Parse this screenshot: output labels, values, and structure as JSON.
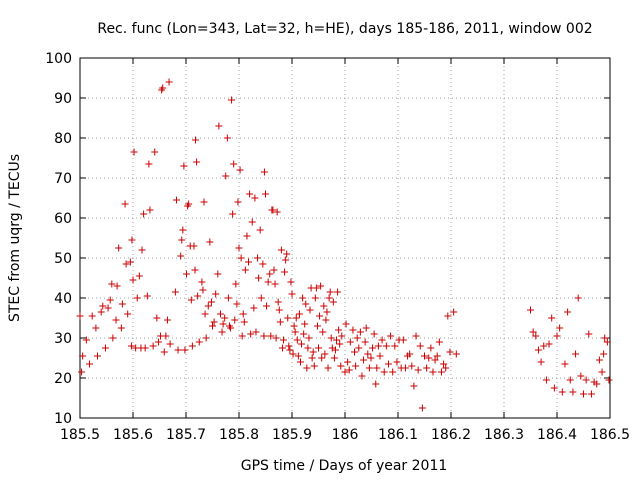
{
  "chart_data": {
    "type": "scatter",
    "title": "Rec. func (Lon=343, Lat=32, h=HE), days 185-186, 2011, window 002",
    "xlabel": "GPS time / Days of year 2011",
    "ylabel": "STEC from uqrg / TECUs",
    "xlim": [
      185.5,
      186.5
    ],
    "ylim": [
      10,
      100
    ],
    "xticks": [
      "185.5",
      "185.6",
      "185.7",
      "185.8",
      "185.9",
      "186",
      "186.1",
      "186.2",
      "186.3",
      "186.4",
      "186.5"
    ],
    "xtick_values": [
      185.5,
      185.6,
      185.7,
      185.8,
      185.9,
      186.0,
      186.1,
      186.2,
      186.3,
      186.4,
      186.5
    ],
    "yticks": [
      "10",
      "20",
      "30",
      "40",
      "50",
      "60",
      "70",
      "80",
      "90",
      "100"
    ],
    "ytick_values": [
      10,
      20,
      30,
      40,
      50,
      60,
      70,
      80,
      90,
      100
    ],
    "grid": true,
    "marker": "+",
    "marker_color": "#cc0000",
    "points": [
      [
        185.5,
        35.5
      ],
      [
        185.503,
        21.5
      ],
      [
        185.505,
        25.5
      ],
      [
        185.512,
        29.5
      ],
      [
        185.518,
        23.5
      ],
      [
        185.523,
        35.5
      ],
      [
        185.53,
        32.5
      ],
      [
        185.533,
        25.5
      ],
      [
        185.54,
        36.5
      ],
      [
        185.543,
        38.0
      ],
      [
        185.548,
        27.5
      ],
      [
        185.553,
        37.5
      ],
      [
        185.557,
        39.5
      ],
      [
        185.56,
        43.5
      ],
      [
        185.562,
        30.0
      ],
      [
        185.568,
        34.5
      ],
      [
        185.57,
        43.0
      ],
      [
        185.573,
        52.5
      ],
      [
        185.578,
        32.5
      ],
      [
        185.58,
        38.5
      ],
      [
        185.585,
        63.5
      ],
      [
        185.587,
        48.5
      ],
      [
        185.59,
        36.0
      ],
      [
        185.595,
        49.0
      ],
      [
        185.597,
        28.0
      ],
      [
        185.598,
        54.5
      ],
      [
        185.6,
        44.5
      ],
      [
        185.602,
        76.5
      ],
      [
        185.605,
        27.5
      ],
      [
        185.608,
        40.0
      ],
      [
        185.612,
        45.5
      ],
      [
        185.615,
        27.5
      ],
      [
        185.617,
        52.0
      ],
      [
        185.62,
        61.0
      ],
      [
        185.623,
        27.5
      ],
      [
        185.627,
        40.5
      ],
      [
        185.63,
        73.5
      ],
      [
        185.632,
        62.0
      ],
      [
        185.638,
        28.0
      ],
      [
        185.641,
        76.5
      ],
      [
        185.645,
        35.0
      ],
      [
        185.648,
        29.0
      ],
      [
        185.652,
        30.5
      ],
      [
        185.654,
        92.0
      ],
      [
        185.656,
        92.5
      ],
      [
        185.659,
        26.5
      ],
      [
        185.662,
        30.5
      ],
      [
        185.665,
        34.5
      ],
      [
        185.668,
        94.0
      ],
      [
        185.67,
        28.5
      ],
      [
        185.68,
        41.5
      ],
      [
        185.682,
        64.5
      ],
      [
        185.685,
        27.0
      ],
      [
        185.69,
        50.5
      ],
      [
        185.692,
        54.5
      ],
      [
        185.694,
        57.0
      ],
      [
        185.696,
        73.0
      ],
      [
        185.698,
        27.0
      ],
      [
        185.701,
        46.0
      ],
      [
        185.703,
        63.0
      ],
      [
        185.705,
        63.5
      ],
      [
        185.708,
        53.0
      ],
      [
        185.71,
        39.5
      ],
      [
        185.712,
        28.0
      ],
      [
        185.715,
        53.0
      ],
      [
        185.717,
        47.0
      ],
      [
        185.718,
        79.5
      ],
      [
        185.72,
        74.0
      ],
      [
        185.722,
        40.5
      ],
      [
        185.725,
        29.0
      ],
      [
        185.73,
        44.0
      ],
      [
        185.732,
        42.0
      ],
      [
        185.734,
        64.0
      ],
      [
        185.736,
        36.0
      ],
      [
        185.738,
        30.0
      ],
      [
        185.742,
        38.0
      ],
      [
        185.745,
        54.0
      ],
      [
        185.748,
        39.0
      ],
      [
        185.75,
        33.0
      ],
      [
        185.753,
        34.0
      ],
      [
        185.756,
        41.0
      ],
      [
        185.76,
        46.0
      ],
      [
        185.762,
        83.0
      ],
      [
        185.765,
        36.0
      ],
      [
        185.768,
        31.5
      ],
      [
        185.77,
        33.5
      ],
      [
        185.773,
        35.0
      ],
      [
        185.775,
        70.5
      ],
      [
        185.778,
        80.0
      ],
      [
        185.78,
        40.0
      ],
      [
        185.782,
        33.0
      ],
      [
        185.784,
        32.5
      ],
      [
        185.786,
        89.5
      ],
      [
        185.788,
        61.0
      ],
      [
        185.79,
        73.5
      ],
      [
        185.792,
        34.5
      ],
      [
        185.794,
        43.5
      ],
      [
        185.796,
        38.5
      ],
      [
        185.798,
        64.0
      ],
      [
        185.8,
        52.5
      ],
      [
        185.802,
        72.0
      ],
      [
        185.804,
        50.0
      ],
      [
        185.806,
        30.5
      ],
      [
        185.808,
        36.0
      ],
      [
        185.81,
        34.0
      ],
      [
        185.812,
        47.0
      ],
      [
        185.815,
        55.5
      ],
      [
        185.818,
        49.0
      ],
      [
        185.82,
        66.0
      ],
      [
        185.822,
        31.0
      ],
      [
        185.825,
        59.0
      ],
      [
        185.828,
        37.5
      ],
      [
        185.83,
        65.0
      ],
      [
        185.832,
        31.5
      ],
      [
        185.835,
        50.0
      ],
      [
        185.837,
        45.0
      ],
      [
        185.84,
        57.0
      ],
      [
        185.842,
        40.0
      ],
      [
        185.845,
        48.5
      ],
      [
        185.847,
        30.5
      ],
      [
        185.848,
        71.5
      ],
      [
        185.85,
        66.0
      ],
      [
        185.852,
        38.0
      ],
      [
        185.855,
        44.0
      ],
      [
        185.858,
        46.0
      ],
      [
        185.86,
        30.5
      ],
      [
        185.862,
        62.0
      ],
      [
        185.864,
        62.0
      ],
      [
        185.866,
        47.0
      ],
      [
        185.868,
        43.5
      ],
      [
        185.87,
        30.0
      ],
      [
        185.872,
        61.5
      ],
      [
        185.874,
        39.0
      ],
      [
        185.876,
        37.0
      ],
      [
        185.878,
        34.0
      ],
      [
        185.88,
        52.0
      ],
      [
        185.882,
        27.5
      ],
      [
        185.884,
        29.5
      ],
      [
        185.886,
        46.5
      ],
      [
        185.888,
        49.5
      ],
      [
        185.89,
        51.0
      ],
      [
        185.892,
        35.0
      ],
      [
        185.894,
        28.0
      ],
      [
        185.896,
        27.0
      ],
      [
        185.898,
        44.0
      ],
      [
        185.9,
        41.0
      ],
      [
        185.902,
        26.0
      ],
      [
        185.904,
        33.0
      ],
      [
        185.906,
        31.5
      ],
      [
        185.908,
        35.0
      ],
      [
        185.91,
        29.5
      ],
      [
        185.912,
        25.5
      ],
      [
        185.914,
        36.0
      ],
      [
        185.916,
        24.0
      ],
      [
        185.918,
        28.5
      ],
      [
        185.92,
        40.0
      ],
      [
        185.922,
        31.0
      ],
      [
        185.924,
        33.5
      ],
      [
        185.926,
        38.5
      ],
      [
        185.928,
        22.5
      ],
      [
        185.93,
        27.5
      ],
      [
        185.932,
        30.0
      ],
      [
        185.934,
        37.0
      ],
      [
        185.936,
        42.5
      ],
      [
        185.938,
        25.0
      ],
      [
        185.94,
        26.5
      ],
      [
        185.942,
        23.0
      ],
      [
        185.944,
        40.0
      ],
      [
        185.946,
        42.5
      ],
      [
        185.948,
        33.0
      ],
      [
        185.95,
        27.5
      ],
      [
        185.952,
        35.5
      ],
      [
        185.954,
        43.0
      ],
      [
        185.956,
        25.0
      ],
      [
        185.958,
        31.5
      ],
      [
        185.96,
        38.0
      ],
      [
        185.962,
        26.0
      ],
      [
        185.964,
        34.5
      ],
      [
        185.966,
        36.5
      ],
      [
        185.968,
        22.5
      ],
      [
        185.97,
        40.0
      ],
      [
        185.972,
        41.5
      ],
      [
        185.974,
        30.0
      ],
      [
        185.976,
        27.5
      ],
      [
        185.978,
        39.0
      ],
      [
        185.98,
        25.0
      ],
      [
        185.982,
        27.0
      ],
      [
        185.984,
        29.5
      ],
      [
        185.986,
        41.5
      ],
      [
        185.988,
        32.0
      ],
      [
        185.99,
        28.5
      ],
      [
        185.992,
        23.0
      ],
      [
        185.994,
        30.5
      ],
      [
        186.0,
        21.5
      ],
      [
        186.002,
        33.5
      ],
      [
        186.005,
        24.0
      ],
      [
        186.008,
        22.0
      ],
      [
        186.01,
        29.0
      ],
      [
        186.015,
        32.0
      ],
      [
        186.018,
        26.5
      ],
      [
        186.02,
        23.0
      ],
      [
        186.023,
        30.0
      ],
      [
        186.026,
        27.5
      ],
      [
        186.029,
        31.5
      ],
      [
        186.032,
        20.5
      ],
      [
        186.035,
        24.5
      ],
      [
        186.038,
        29.0
      ],
      [
        186.04,
        32.5
      ],
      [
        186.043,
        26.0
      ],
      [
        186.046,
        22.5
      ],
      [
        186.049,
        25.0
      ],
      [
        186.052,
        27.5
      ],
      [
        186.055,
        31.0
      ],
      [
        186.058,
        18.5
      ],
      [
        186.06,
        22.5
      ],
      [
        186.063,
        28.0
      ],
      [
        186.066,
        25.5
      ],
      [
        186.07,
        29.5
      ],
      [
        186.074,
        21.5
      ],
      [
        186.078,
        28.0
      ],
      [
        186.082,
        23.5
      ],
      [
        186.086,
        30.5
      ],
      [
        186.09,
        21.5
      ],
      [
        186.094,
        28.0
      ],
      [
        186.098,
        24.0
      ],
      [
        186.102,
        29.5
      ],
      [
        186.106,
        22.5
      ],
      [
        186.11,
        29.5
      ],
      [
        186.114,
        22.5
      ],
      [
        186.118,
        25.5
      ],
      [
        186.122,
        26.0
      ],
      [
        186.126,
        23.0
      ],
      [
        186.13,
        18.0
      ],
      [
        186.134,
        30.5
      ],
      [
        186.138,
        22.0
      ],
      [
        186.142,
        28.0
      ],
      [
        186.146,
        12.5
      ],
      [
        186.15,
        25.5
      ],
      [
        186.154,
        22.5
      ],
      [
        186.158,
        25.0
      ],
      [
        186.162,
        27.5
      ],
      [
        186.166,
        21.5
      ],
      [
        186.17,
        24.5
      ],
      [
        186.174,
        25.5
      ],
      [
        186.178,
        29.0
      ],
      [
        186.182,
        21.5
      ],
      [
        186.186,
        23.5
      ],
      [
        186.19,
        22.5
      ],
      [
        186.194,
        35.5
      ],
      [
        186.198,
        26.5
      ],
      [
        186.205,
        36.5
      ],
      [
        186.21,
        26.0
      ],
      [
        186.35,
        37.0
      ],
      [
        186.355,
        31.5
      ],
      [
        186.36,
        30.5
      ],
      [
        186.365,
        27.0
      ],
      [
        186.37,
        24.0
      ],
      [
        186.375,
        28.0
      ],
      [
        186.38,
        19.5
      ],
      [
        186.385,
        28.5
      ],
      [
        186.39,
        35.0
      ],
      [
        186.395,
        17.5
      ],
      [
        186.4,
        30.5
      ],
      [
        186.405,
        32.5
      ],
      [
        186.41,
        16.5
      ],
      [
        186.415,
        23.5
      ],
      [
        186.42,
        36.5
      ],
      [
        186.425,
        19.5
      ],
      [
        186.43,
        16.5
      ],
      [
        186.435,
        26.0
      ],
      [
        186.44,
        40.0
      ],
      [
        186.445,
        20.5
      ],
      [
        186.45,
        16.0
      ],
      [
        186.455,
        19.5
      ],
      [
        186.46,
        31.0
      ],
      [
        186.465,
        16.0
      ],
      [
        186.47,
        19.0
      ],
      [
        186.475,
        18.5
      ],
      [
        186.48,
        24.5
      ],
      [
        186.485,
        21.5
      ],
      [
        186.488,
        26.0
      ],
      [
        186.49,
        30.0
      ],
      [
        186.495,
        29.0
      ],
      [
        186.498,
        19.5
      ]
    ]
  }
}
